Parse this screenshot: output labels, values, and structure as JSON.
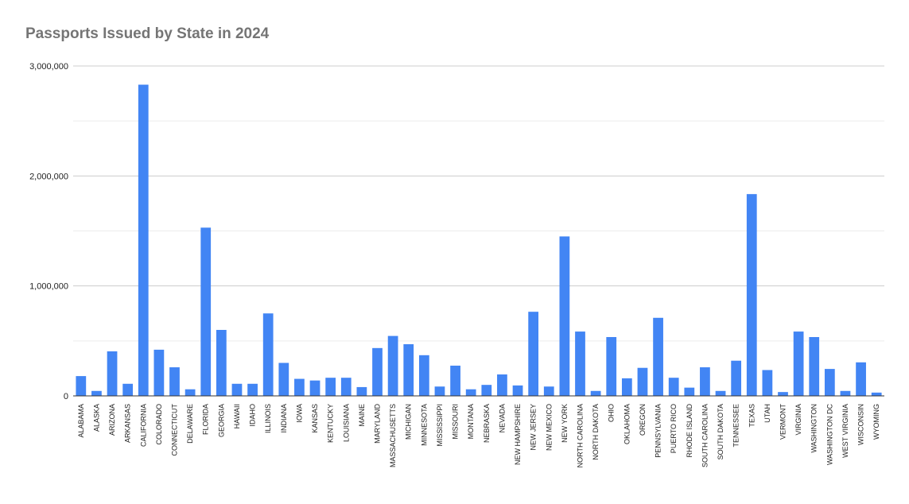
{
  "chart_data": {
    "type": "bar",
    "title": "Passports Issued by State in 2024",
    "xlabel": "",
    "ylabel": "",
    "ylim": [
      0,
      3000000
    ],
    "yticks": [
      "0",
      "1,000,000",
      "2,000,000",
      "3,000,000"
    ],
    "yticks_values": [
      0,
      1000000,
      2000000,
      3000000
    ],
    "grid": true,
    "bar_color": "#4285f4",
    "categories": [
      "ALABAMA",
      "ALASKA",
      "ARIZONA",
      "ARKANSAS",
      "CALIFORNIA",
      "COLORADO",
      "CONNECTICUT",
      "DELAWARE",
      "FLORIDA",
      "GEORGIA",
      "HAWAII",
      "IDAHO",
      "ILLINOIS",
      "INDIANA",
      "IOWA",
      "KANSAS",
      "KENTUCKY",
      "LOUISIANA",
      "MAINE",
      "MARYLAND",
      "MASSACHUSETTS",
      "MICHIGAN",
      "MINNESOTA",
      "MISSISSIPPI",
      "MISSOURI",
      "MONTANA",
      "NEBRASKA",
      "NEVADA",
      "NEW HAMPSHIRE",
      "NEW JERSEY",
      "NEW MEXICO",
      "NEW YORK",
      "NORTH CAROLINA",
      "NORTH DAKOTA",
      "OHIO",
      "OKLAHOMA",
      "OREGON",
      "PENNSYLVANIA",
      "PUERTO RICO",
      "RHODE ISLAND",
      "SOUTH CAROLINA",
      "SOUTH DAKOTA",
      "TENNESSEE",
      "TEXAS",
      "UTAH",
      "VERMONT",
      "VIRGINIA",
      "WASHINGTON",
      "WASHINGTON DC",
      "WEST VIRGINIA",
      "WISCONSIN",
      "WYOMING"
    ],
    "values": [
      180000,
      45000,
      405000,
      110000,
      2830000,
      420000,
      260000,
      60000,
      1530000,
      600000,
      110000,
      110000,
      750000,
      300000,
      155000,
      140000,
      165000,
      165000,
      80000,
      435000,
      545000,
      470000,
      370000,
      85000,
      275000,
      60000,
      100000,
      195000,
      95000,
      765000,
      85000,
      1450000,
      585000,
      45000,
      535000,
      160000,
      255000,
      710000,
      165000,
      75000,
      260000,
      45000,
      320000,
      1835000,
      235000,
      35000,
      585000,
      535000,
      245000,
      45000,
      305000,
      30000
    ]
  }
}
